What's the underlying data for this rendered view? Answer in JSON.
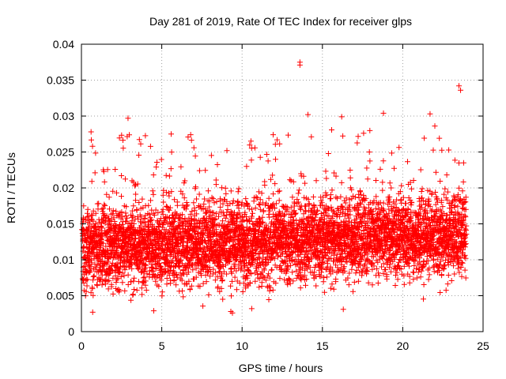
{
  "chart_data": {
    "type": "scatter",
    "title": "Day 281 of 2019, Rate Of TEC Index for receiver glps",
    "xlabel": "GPS time / hours",
    "ylabel": "ROTI / TECUs",
    "xlim": [
      0,
      25
    ],
    "ylim": [
      0,
      0.04
    ],
    "xticks": [
      0,
      5,
      10,
      15,
      20,
      25
    ],
    "xtick_labels": [
      "0",
      "5",
      "10",
      "15",
      "20",
      "25"
    ],
    "yticks": [
      0,
      0.005,
      0.01,
      0.015,
      0.02,
      0.025,
      0.03,
      0.035,
      0.04
    ],
    "ytick_labels": [
      "0",
      "0.005",
      "0.01",
      "0.015",
      "0.02",
      "0.025",
      "0.03",
      "0.035",
      "0.04"
    ],
    "grid": true,
    "marker": "+",
    "color": "#ff0000",
    "series": [
      {
        "name": "ROTI",
        "x": [
          0.1,
          0.3,
          0.5,
          0.6,
          0.8,
          1.0,
          1.2,
          1.5,
          1.8,
          2.0,
          2.3,
          2.6,
          2.8,
          3.0,
          3.3,
          3.6,
          3.9,
          4.1,
          4.4,
          4.7,
          5.0,
          5.2,
          5.5,
          5.8,
          6.0,
          6.3,
          6.6,
          6.9,
          7.1,
          7.4,
          7.7,
          8.0,
          8.3,
          8.6,
          8.9,
          9.2,
          9.5,
          9.7,
          10.0,
          10.3,
          10.6,
          10.9,
          11.2,
          11.5,
          11.8,
          12.1,
          12.4,
          12.7,
          13.0,
          13.3,
          13.6,
          13.9,
          14.2,
          14.5,
          14.8,
          15.1,
          15.4,
          15.7,
          16.0,
          16.3,
          16.6,
          16.9,
          17.2,
          17.5,
          17.8,
          18.1,
          18.4,
          18.7,
          19.0,
          19.3,
          19.6,
          19.9,
          20.2,
          20.5,
          20.8,
          21.1,
          21.4,
          21.7,
          22.0,
          22.3,
          22.6,
          22.9,
          23.2,
          23.5,
          23.8,
          0.6,
          2.9,
          13.6,
          13.6,
          23.5,
          23.6,
          14.1,
          6.8,
          16.2,
          18.8,
          21.7,
          9.4,
          9.3,
          10.6,
          16.3,
          0.7,
          4.5
        ],
        "y": [
          0.0112,
          0.0125,
          0.0098,
          0.0141,
          0.0133,
          0.0108,
          0.0119,
          0.0136,
          0.0121,
          0.0104,
          0.0127,
          0.0139,
          0.0115,
          0.0131,
          0.0109,
          0.0124,
          0.0142,
          0.0118,
          0.0101,
          0.0135,
          0.0122,
          0.0096,
          0.0128,
          0.0137,
          0.0113,
          0.0106,
          0.0132,
          0.0144,
          0.0117,
          0.0099,
          0.0126,
          0.0138,
          0.0111,
          0.0103,
          0.0129,
          0.0116,
          0.0094,
          0.0107,
          0.0121,
          0.0134,
          0.0102,
          0.0125,
          0.0139,
          0.0114,
          0.0131,
          0.0119,
          0.0105,
          0.0136,
          0.0146,
          0.0123,
          0.0113,
          0.0128,
          0.0141,
          0.0118,
          0.0133,
          0.0145,
          0.0126,
          0.0111,
          0.0138,
          0.0147,
          0.0122,
          0.0131,
          0.0142,
          0.0117,
          0.0129,
          0.0151,
          0.0136,
          0.0124,
          0.0139,
          0.0148,
          0.0127,
          0.0133,
          0.0144,
          0.0121,
          0.0137,
          0.0149,
          0.0128,
          0.0135,
          0.0142,
          0.0119,
          0.0146,
          0.0131,
          0.0138,
          0.0152,
          0.0129,
          0.0278,
          0.0297,
          0.0375,
          0.0371,
          0.0342,
          0.0336,
          0.0302,
          0.0274,
          0.0299,
          0.0304,
          0.0303,
          0.0026,
          0.0028,
          0.0032,
          0.0031,
          0.0027,
          0.0029
        ]
      }
    ]
  }
}
